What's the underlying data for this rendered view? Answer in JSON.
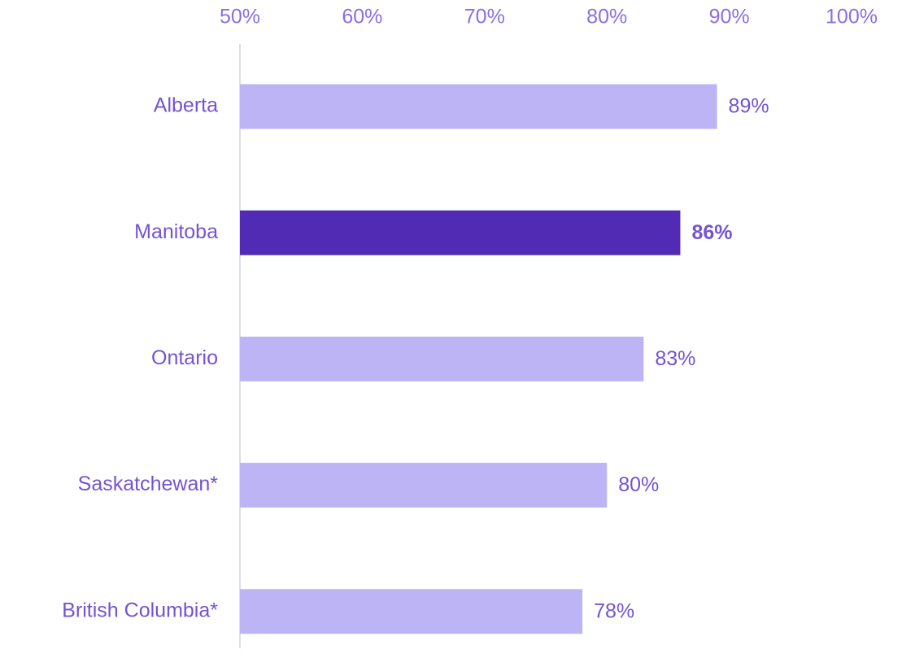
{
  "chart_data": {
    "type": "bar",
    "orientation": "horizontal",
    "categories": [
      "Alberta",
      "Manitoba",
      "Ontario",
      "Saskatchewan*",
      "British Columbia*"
    ],
    "values": [
      89,
      86,
      83,
      80,
      78
    ],
    "value_labels": [
      "89%",
      "86%",
      "83%",
      "80%",
      "78%"
    ],
    "colors": [
      "#bcb4f5",
      "#512bb3",
      "#bcb4f5",
      "#bcb4f5",
      "#bcb4f5"
    ],
    "label_weights": [
      "normal",
      "bold",
      "normal",
      "normal",
      "normal"
    ],
    "xlim": [
      50,
      100
    ],
    "xticks": [
      {
        "value": 50,
        "label": "50%"
      },
      {
        "value": 60,
        "label": "60%"
      },
      {
        "value": 70,
        "label": "70%"
      },
      {
        "value": 80,
        "label": "80%"
      },
      {
        "value": 90,
        "label": "90%"
      },
      {
        "value": 100,
        "label": "100%"
      }
    ],
    "grid": false
  }
}
